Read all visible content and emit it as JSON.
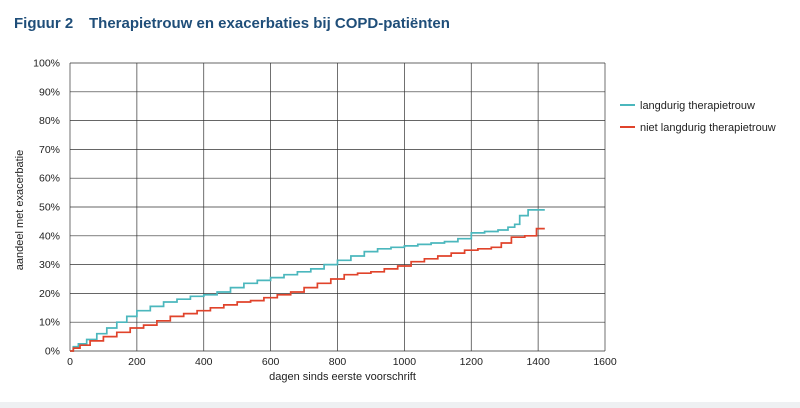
{
  "figure": {
    "number": "Figuur 2",
    "title": "Therapietrouw en exacerbaties bij COPD-patiënten"
  },
  "chart_data": {
    "type": "line",
    "xlabel": "dagen sinds eerste voorschrift",
    "ylabel": "aandeel met exacerbatie",
    "xlim": [
      0,
      1600
    ],
    "ylim": [
      0,
      100
    ],
    "x_ticks": [
      "0",
      "200",
      "400",
      "600",
      "800",
      "1000",
      "1200",
      "1400",
      "1600"
    ],
    "y_ticks": [
      "0%",
      "10%",
      "20%",
      "30%",
      "40%",
      "50%",
      "60%",
      "70%",
      "80%",
      "90%",
      "100%"
    ],
    "grid": true,
    "legend_position": "right",
    "series": [
      {
        "name": "langdurig therapietrouw",
        "color": "#4bb7bd",
        "step": true,
        "points": [
          [
            0,
            0
          ],
          [
            10,
            1.5
          ],
          [
            25,
            2.5
          ],
          [
            50,
            4
          ],
          [
            80,
            6
          ],
          [
            110,
            8
          ],
          [
            140,
            10
          ],
          [
            170,
            12
          ],
          [
            200,
            14
          ],
          [
            240,
            15.5
          ],
          [
            280,
            17
          ],
          [
            320,
            18
          ],
          [
            360,
            19
          ],
          [
            400,
            19.5
          ],
          [
            440,
            20.5
          ],
          [
            480,
            22
          ],
          [
            520,
            23.5
          ],
          [
            560,
            24.5
          ],
          [
            600,
            25.5
          ],
          [
            640,
            26.5
          ],
          [
            680,
            27.5
          ],
          [
            720,
            28.5
          ],
          [
            760,
            30
          ],
          [
            800,
            31.5
          ],
          [
            840,
            33
          ],
          [
            880,
            34.5
          ],
          [
            920,
            35.5
          ],
          [
            960,
            36
          ],
          [
            1000,
            36.5
          ],
          [
            1040,
            37
          ],
          [
            1080,
            37.5
          ],
          [
            1120,
            38
          ],
          [
            1160,
            39
          ],
          [
            1200,
            41
          ],
          [
            1240,
            41.5
          ],
          [
            1280,
            42
          ],
          [
            1310,
            43
          ],
          [
            1330,
            44
          ],
          [
            1345,
            47
          ],
          [
            1370,
            49
          ],
          [
            1420,
            49
          ]
        ]
      },
      {
        "name": "niet langdurig therapietrouw",
        "color": "#e0432b",
        "step": true,
        "points": [
          [
            0,
            0
          ],
          [
            10,
            1
          ],
          [
            30,
            2
          ],
          [
            60,
            3.5
          ],
          [
            100,
            5
          ],
          [
            140,
            6.5
          ],
          [
            180,
            8
          ],
          [
            220,
            9
          ],
          [
            260,
            10.5
          ],
          [
            300,
            12
          ],
          [
            340,
            13
          ],
          [
            380,
            14
          ],
          [
            420,
            15
          ],
          [
            460,
            16
          ],
          [
            500,
            17
          ],
          [
            540,
            17.5
          ],
          [
            580,
            18.5
          ],
          [
            620,
            19.5
          ],
          [
            660,
            20.5
          ],
          [
            700,
            22
          ],
          [
            740,
            23.5
          ],
          [
            780,
            25
          ],
          [
            820,
            26.5
          ],
          [
            860,
            27
          ],
          [
            900,
            27.5
          ],
          [
            940,
            28.5
          ],
          [
            980,
            29.5
          ],
          [
            1020,
            31
          ],
          [
            1060,
            32
          ],
          [
            1100,
            33
          ],
          [
            1140,
            34
          ],
          [
            1180,
            35
          ],
          [
            1220,
            35.5
          ],
          [
            1260,
            36
          ],
          [
            1290,
            37.5
          ],
          [
            1320,
            39.5
          ],
          [
            1360,
            40
          ],
          [
            1395,
            42.5
          ],
          [
            1420,
            42.5
          ]
        ]
      }
    ]
  }
}
